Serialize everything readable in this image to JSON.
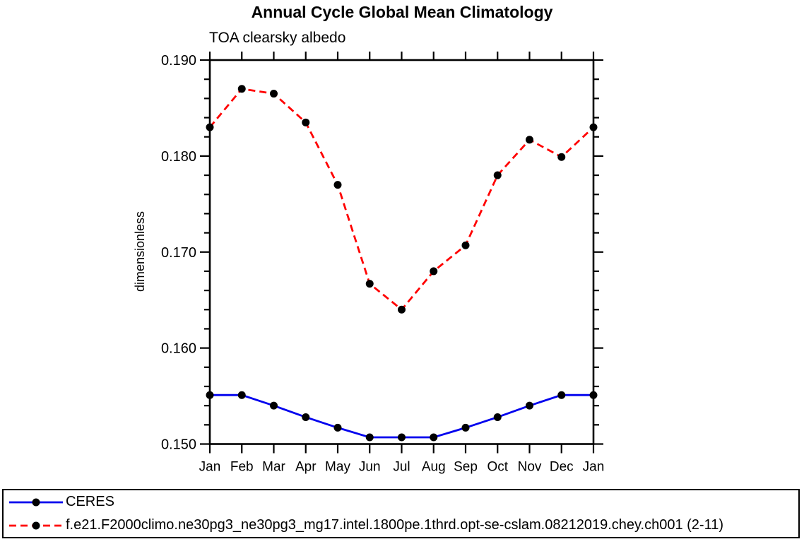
{
  "title": "Annual Cycle Global Mean Climatology",
  "subtitle": "TOA clearsky albedo",
  "chart_data": {
    "type": "line",
    "title": "Annual Cycle Global Mean Climatology",
    "subtitle": "TOA clearsky albedo",
    "ylabel": "dimensionless",
    "xlabel": "",
    "categories": [
      "Jan",
      "Feb",
      "Mar",
      "Apr",
      "May",
      "Jun",
      "Jul",
      "Aug",
      "Sep",
      "Oct",
      "Nov",
      "Dec",
      "Jan"
    ],
    "series": [
      {
        "name": "CERES",
        "color": "#0000ee",
        "line_style": "solid",
        "marker": "circle",
        "marker_color": "#000000",
        "values": [
          0.1551,
          0.1551,
          0.154,
          0.1528,
          0.1517,
          0.1507,
          0.1507,
          0.1507,
          0.1517,
          0.1528,
          0.154,
          0.1551,
          0.1551
        ]
      },
      {
        "name": "f.e21.F2000climo.ne30pg3_ne30pg3_mg17.intel.1800pe.1thrd.opt-se-cslam.08212019.chey.ch001 (2-11)",
        "color": "#ff0000",
        "line_style": "dashed",
        "marker": "circle",
        "marker_color": "#000000",
        "values": [
          0.183,
          0.187,
          0.1865,
          0.1835,
          0.177,
          0.1667,
          0.164,
          0.168,
          0.1707,
          0.178,
          0.1817,
          0.1799,
          0.183
        ]
      }
    ],
    "ylim": [
      0.15,
      0.19
    ],
    "ytick_major": 0.01,
    "ytick_minor": 0.002,
    "ytick_labels": [
      "0.150",
      "0.160",
      "0.170",
      "0.180",
      "0.190"
    ],
    "grid": false,
    "axis_color": "#000000",
    "legend_position": "bottom"
  }
}
